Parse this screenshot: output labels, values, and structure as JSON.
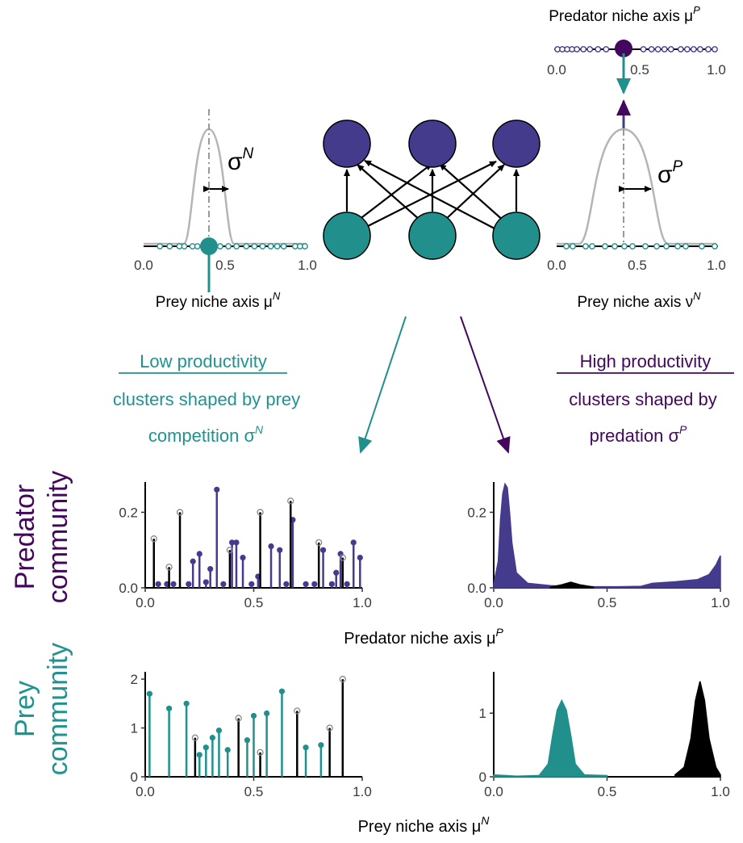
{
  "colors": {
    "predator": "#453b8d",
    "prey": "#21908c",
    "predator_dark": "#43085e",
    "kernel": "#b5b5b5",
    "other": "#000000"
  },
  "top_left": {
    "axis_label": "Prey niche axis μ",
    "axis_sup": "N",
    "sigma": "σ",
    "sigma_sup": "N",
    "ticks": [
      "0.0",
      "0.5",
      "1.0"
    ]
  },
  "top_right": {
    "axis_label": "Prey niche axis ν",
    "axis_sup": "N",
    "sigma": "σ",
    "sigma_sup": "P",
    "ticks": [
      "0.0",
      "0.5",
      "1.0"
    ],
    "pred_axis_label": "Predator niche axis μ",
    "pred_axis_sup": "P",
    "pred_ticks": [
      "0.0",
      "0.5",
      "1.0"
    ]
  },
  "network": {
    "predator_icon": "predator-node",
    "prey_icon": "prey-node"
  },
  "low": {
    "title": "Low productivity",
    "line1": "clusters shaped by prey",
    "line2": "competition σ",
    "sup": "N"
  },
  "high": {
    "title": "High productivity",
    "line1": "clusters shaped by",
    "line2": "predation σ",
    "sup": "P"
  },
  "row_labels": {
    "predator_1": "Predator",
    "predator_2": "community",
    "prey_1": "Prey",
    "prey_2": "community"
  },
  "x_axis_predator": {
    "label": "Predator niche axis μ",
    "sup": "P"
  },
  "x_axis_prey": {
    "label": "Prey niche axis μ",
    "sup": "N"
  },
  "chart_data": [
    {
      "id": "pred_low",
      "type": "bar",
      "xlim": [
        0,
        1
      ],
      "ylim": [
        0,
        0.28
      ],
      "xticks": [
        "0.0",
        "0.5",
        "1.0"
      ],
      "yticks": [
        "0.0",
        "0.2"
      ],
      "ytick_values": [
        0,
        0.2
      ],
      "series": [
        {
          "color": "predator",
          "x": [
            0.06,
            0.1,
            0.13,
            0.2,
            0.22,
            0.25,
            0.28,
            0.3,
            0.33,
            0.36,
            0.4,
            0.42,
            0.45,
            0.49,
            0.52,
            0.58,
            0.62,
            0.65,
            0.68,
            0.74,
            0.78,
            0.82,
            0.86,
            0.88,
            0.9,
            0.93,
            0.96,
            0.99
          ],
          "y": [
            0.01,
            0.01,
            0.01,
            0.01,
            0.07,
            0.09,
            0.015,
            0.05,
            0.26,
            0.01,
            0.12,
            0.12,
            0.08,
            0.01,
            0.03,
            0.11,
            0.1,
            0.01,
            0.18,
            0.01,
            0.01,
            0.1,
            0.01,
            0.04,
            0.09,
            0.01,
            0.12,
            0.08
          ]
        },
        {
          "color": "other",
          "x": [
            0.04,
            0.11,
            0.16,
            0.39,
            0.53,
            0.67,
            0.8,
            0.91
          ],
          "y": [
            0.13,
            0.055,
            0.2,
            0.1,
            0.2,
            0.23,
            0.12,
            0.08
          ]
        }
      ]
    },
    {
      "id": "pred_high",
      "type": "area",
      "xlim": [
        0,
        1
      ],
      "ylim": [
        0,
        0.28
      ],
      "xticks": [
        "0.0",
        "0.5",
        "1.0"
      ],
      "yticks": [
        "0.0",
        "0.2"
      ],
      "ytick_values": [
        0,
        0.2
      ],
      "series": [
        {
          "color": "predator",
          "x": [
            0,
            0.02,
            0.03,
            0.04,
            0.05,
            0.06,
            0.07,
            0.08,
            0.1,
            0.15,
            0.25,
            0.35,
            0.45,
            0.55,
            0.65,
            0.7,
            0.8,
            0.9,
            0.95,
            0.98,
            1.0
          ],
          "y": [
            0.01,
            0.07,
            0.18,
            0.25,
            0.275,
            0.265,
            0.2,
            0.12,
            0.04,
            0.012,
            0.006,
            0.003,
            0.003,
            0.003,
            0.004,
            0.012,
            0.016,
            0.022,
            0.035,
            0.06,
            0.085
          ]
        },
        {
          "color": "other",
          "x": [
            0.25,
            0.3,
            0.34,
            0.38,
            0.44
          ],
          "y": [
            0.002,
            0.008,
            0.015,
            0.008,
            0.002
          ]
        }
      ]
    },
    {
      "id": "prey_low",
      "type": "bar",
      "xlim": [
        0,
        1
      ],
      "ylim": [
        0,
        2.15
      ],
      "xticks": [
        "0.0",
        "0.5",
        "1.0"
      ],
      "yticks": [
        "0",
        "1",
        "2"
      ],
      "ytick_values": [
        0,
        1,
        2
      ],
      "series": [
        {
          "color": "prey",
          "x": [
            0.02,
            0.11,
            0.19,
            0.25,
            0.28,
            0.31,
            0.34,
            0.38,
            0.47,
            0.5,
            0.56,
            0.63,
            0.74,
            0.81
          ],
          "y": [
            1.7,
            1.4,
            1.5,
            0.45,
            0.6,
            0.8,
            0.95,
            0.55,
            0.75,
            1.25,
            1.3,
            1.75,
            0.6,
            0.65
          ]
        },
        {
          "color": "other",
          "x": [
            0.23,
            0.43,
            0.53,
            0.7,
            0.85,
            0.91
          ],
          "y": [
            0.8,
            1.2,
            0.5,
            1.35,
            1.0,
            2.0
          ]
        }
      ]
    },
    {
      "id": "prey_high",
      "type": "area",
      "xlim": [
        0,
        1
      ],
      "ylim": [
        0,
        1.65
      ],
      "xticks": [
        "0.0",
        "0.5",
        "1.0"
      ],
      "yticks": [
        "0",
        "1"
      ],
      "ytick_values": [
        0,
        1
      ],
      "series": [
        {
          "color": "prey",
          "x": [
            0,
            0.05,
            0.1,
            0.2,
            0.24,
            0.26,
            0.28,
            0.3,
            0.32,
            0.34,
            0.36,
            0.4,
            0.5
          ],
          "y": [
            0.03,
            0.02,
            0.01,
            0.02,
            0.2,
            0.65,
            1.05,
            1.2,
            1.05,
            0.65,
            0.2,
            0.03,
            0.02
          ]
        },
        {
          "color": "other",
          "x": [
            0.8,
            0.84,
            0.87,
            0.89,
            0.91,
            0.93,
            0.95,
            0.98,
            1.0
          ],
          "y": [
            0.03,
            0.15,
            0.6,
            1.2,
            1.5,
            1.2,
            0.6,
            0.15,
            0.03
          ]
        }
      ]
    }
  ]
}
